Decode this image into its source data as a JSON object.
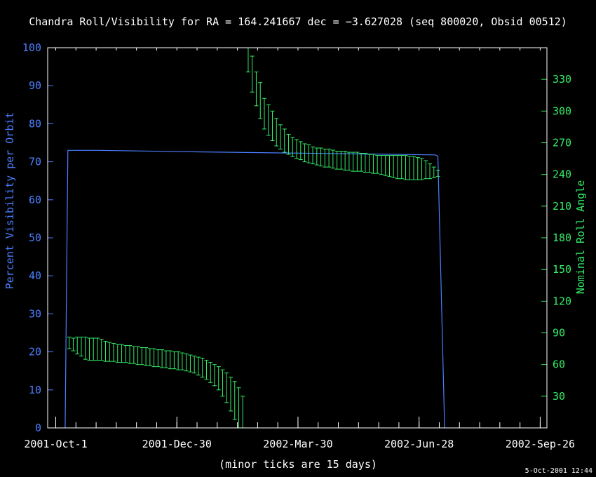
{
  "colors": {
    "background": "#000000",
    "frame": "#ffffff",
    "visibility": "#4a7fff",
    "roll": "#33ee66",
    "text": "#ffffff"
  },
  "chart_data": {
    "type": "line",
    "title": "Chandra Roll/Visibility for RA = 164.241667 dec = −3.627028 (seq 800020, Obsid 00512)",
    "xlabel": "(minor ticks are 15 days)",
    "footer": "5-Oct-2001 12:44",
    "x_axis": {
      "range": [
        "2001-09-25",
        "2002-10-01"
      ],
      "major_ticks": [
        {
          "date": "2001-10-01",
          "label": "2001-Oct-1"
        },
        {
          "date": "2001-12-30",
          "label": "2001-Dec-30"
        },
        {
          "date": "2002-03-30",
          "label": "2002-Mar-30"
        },
        {
          "date": "2002-06-28",
          "label": "2002-Jun-28"
        },
        {
          "date": "2002-09-26",
          "label": "2002-Sep-26"
        }
      ],
      "minor_tick_days": 15
    },
    "y_left": {
      "label": "Percent Visibility per Orbit",
      "range": [
        0,
        100
      ],
      "ticks": [
        0,
        10,
        20,
        30,
        40,
        50,
        60,
        70,
        80,
        90,
        100
      ]
    },
    "y_right": {
      "label": "Nominal Roll Angle",
      "range": [
        0,
        360
      ],
      "ticks": [
        30,
        60,
        90,
        120,
        150,
        180,
        210,
        240,
        270,
        300,
        330
      ]
    },
    "series": [
      {
        "axis": "left",
        "points": [
          [
            "2001-10-08",
            0
          ],
          [
            "2001-10-10",
            73
          ],
          [
            "2001-11-01",
            73
          ],
          [
            "2002-01-15",
            72.6
          ],
          [
            "2002-04-15",
            72.2
          ],
          [
            "2002-07-10",
            71.8
          ],
          [
            "2002-07-12",
            71.5
          ],
          [
            "2002-07-17",
            0
          ]
        ]
      },
      {
        "axis": "right",
        "bars": [
          [
            "2001-10-11",
            75,
            86
          ],
          [
            "2001-10-14",
            73,
            85
          ],
          [
            "2001-10-17",
            70,
            86
          ],
          [
            "2001-10-20",
            68,
            86
          ],
          [
            "2001-10-23",
            65,
            86
          ],
          [
            "2001-10-26",
            64,
            85
          ],
          [
            "2001-10-29",
            64,
            85
          ],
          [
            "2001-11-01",
            64,
            85
          ],
          [
            "2001-11-04",
            64,
            84
          ],
          [
            "2001-11-07",
            63,
            82
          ],
          [
            "2001-11-10",
            63,
            81
          ],
          [
            "2001-11-13",
            63,
            80
          ],
          [
            "2001-11-16",
            62,
            79
          ],
          [
            "2001-11-19",
            62,
            79
          ],
          [
            "2001-11-22",
            62,
            78
          ],
          [
            "2001-11-25",
            61,
            78
          ],
          [
            "2001-11-28",
            61,
            77
          ],
          [
            "2001-12-01",
            60,
            77
          ],
          [
            "2001-12-04",
            60,
            76
          ],
          [
            "2001-12-07",
            59,
            76
          ],
          [
            "2001-12-10",
            59,
            75
          ],
          [
            "2001-12-13",
            58,
            75
          ],
          [
            "2001-12-16",
            58,
            74
          ],
          [
            "2001-12-19",
            57,
            74
          ],
          [
            "2001-12-22",
            57,
            73
          ],
          [
            "2001-12-25",
            56,
            73
          ],
          [
            "2001-12-28",
            56,
            72
          ],
          [
            "2001-12-31",
            55,
            72
          ],
          [
            "2002-01-03",
            55,
            71
          ],
          [
            "2002-01-06",
            54,
            70
          ],
          [
            "2002-01-09",
            53,
            69
          ],
          [
            "2002-01-12",
            52,
            68
          ],
          [
            "2002-01-15",
            50,
            67
          ],
          [
            "2002-01-18",
            48,
            66
          ],
          [
            "2002-01-21",
            46,
            64
          ],
          [
            "2002-01-24",
            43,
            62
          ],
          [
            "2002-01-27",
            40,
            60
          ],
          [
            "2002-01-30",
            36,
            58
          ],
          [
            "2002-02-02",
            30,
            55
          ],
          [
            "2002-02-05",
            24,
            52
          ],
          [
            "2002-02-08",
            16,
            48
          ],
          [
            "2002-02-11",
            8,
            44
          ],
          [
            "2002-02-14",
            0,
            38
          ],
          [
            "2002-02-17",
            0,
            30
          ],
          [
            "2002-02-21",
            337,
            362
          ],
          [
            "2002-02-24",
            318,
            352
          ],
          [
            "2002-02-27",
            305,
            337
          ],
          [
            "2002-03-02",
            293,
            327
          ],
          [
            "2002-03-05",
            283,
            312
          ],
          [
            "2002-03-08",
            277,
            306
          ],
          [
            "2002-03-11",
            272,
            300
          ],
          [
            "2002-03-14",
            267,
            293
          ],
          [
            "2002-03-17",
            264,
            287
          ],
          [
            "2002-03-20",
            261,
            283
          ],
          [
            "2002-03-23",
            259,
            278
          ],
          [
            "2002-03-26",
            257,
            275
          ],
          [
            "2002-03-29",
            255,
            273
          ],
          [
            "2002-04-01",
            254,
            271
          ],
          [
            "2002-04-04",
            252,
            269
          ],
          [
            "2002-04-07",
            251,
            268
          ],
          [
            "2002-04-10",
            250,
            266
          ],
          [
            "2002-04-13",
            249,
            265
          ],
          [
            "2002-04-16",
            248,
            265
          ],
          [
            "2002-04-19",
            247,
            264
          ],
          [
            "2002-04-22",
            247,
            264
          ],
          [
            "2002-04-25",
            246,
            263
          ],
          [
            "2002-04-28",
            245,
            262
          ],
          [
            "2002-05-01",
            245,
            262
          ],
          [
            "2002-05-04",
            244,
            262
          ],
          [
            "2002-05-07",
            244,
            261
          ],
          [
            "2002-05-10",
            243,
            261
          ],
          [
            "2002-05-13",
            243,
            261
          ],
          [
            "2002-05-16",
            243,
            260
          ],
          [
            "2002-05-19",
            242,
            260
          ],
          [
            "2002-05-22",
            242,
            259
          ],
          [
            "2002-05-25",
            241,
            259
          ],
          [
            "2002-05-28",
            241,
            258
          ],
          [
            "2002-05-31",
            240,
            258
          ],
          [
            "2002-06-03",
            239,
            258
          ],
          [
            "2002-06-06",
            238,
            258
          ],
          [
            "2002-06-09",
            237,
            258
          ],
          [
            "2002-06-12",
            236,
            258
          ],
          [
            "2002-06-15",
            236,
            258
          ],
          [
            "2002-06-18",
            235,
            258
          ],
          [
            "2002-06-21",
            235,
            257
          ],
          [
            "2002-06-24",
            235,
            257
          ],
          [
            "2002-06-27",
            235,
            256
          ],
          [
            "2002-06-30",
            235,
            255
          ],
          [
            "2002-07-03",
            236,
            253
          ],
          [
            "2002-07-06",
            236,
            250
          ],
          [
            "2002-07-09",
            237,
            247
          ],
          [
            "2002-07-12",
            238,
            244
          ]
        ]
      }
    ]
  }
}
